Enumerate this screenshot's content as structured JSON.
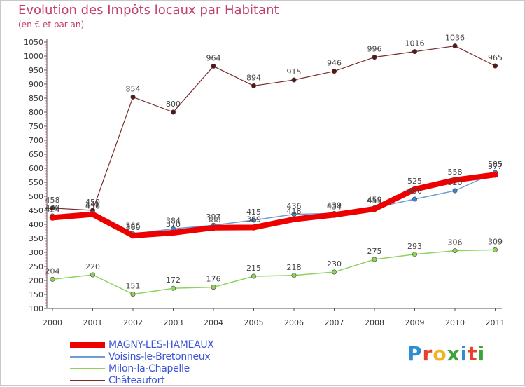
{
  "title": "Evolution des Impôts locaux par Habitant",
  "subtitle": "(en € et par an)",
  "logo": {
    "text": "Proxiti",
    "colors": [
      "#2d8fd1",
      "#e8402a",
      "#f2b321",
      "#3aa536",
      "#2d8fd1",
      "#e8402a",
      "#3aa536"
    ]
  },
  "chart_data": {
    "type": "line",
    "title": "Evolution des Impôts locaux par Habitant",
    "subtitle": "(en € et par an)",
    "xlabel": "",
    "ylabel": "",
    "x": [
      "2000",
      "2001",
      "2002",
      "2003",
      "2004",
      "2005",
      "2006",
      "2007",
      "2008",
      "2009",
      "2010",
      "2011"
    ],
    "ylim": [
      100,
      1050
    ],
    "yticks": [
      100,
      150,
      200,
      250,
      300,
      350,
      400,
      450,
      500,
      550,
      600,
      650,
      700,
      750,
      800,
      850,
      900,
      950,
      1000,
      1050
    ],
    "grid": false,
    "legend_position": "bottom-left",
    "series": [
      {
        "name": "MAGNY-LES-HAMEAUX",
        "color": "#ee0000",
        "values": [
          424,
          436,
          360,
          370,
          388,
          389,
          418,
          434,
          455,
          525,
          558,
          577
        ],
        "labels": [
          "424",
          "436",
          "360",
          "370",
          "388",
          "389",
          "418",
          "434",
          "455",
          "525",
          "558",
          "577"
        ]
      },
      {
        "name": "Voisins-le-Bretonneux",
        "color": "#6d9fd2",
        "values": [
          430,
          441,
          366,
          384,
          397,
          415,
          436,
          439,
          459,
          490,
          520,
          585
        ],
        "labels": [
          "430",
          "441",
          "366",
          "384",
          "397",
          "415",
          "436",
          "439",
          "459",
          "490",
          "520",
          "585"
        ]
      },
      {
        "name": "Milon-la-Chapelle",
        "color": "#8fd25c",
        "values": [
          204,
          220,
          151,
          172,
          176,
          215,
          218,
          230,
          275,
          293,
          306,
          309
        ],
        "labels": [
          "204",
          "220",
          "151",
          "172",
          "176",
          "215",
          "218",
          "230",
          "275",
          "293",
          "306",
          "309"
        ]
      },
      {
        "name": "Châteaufort",
        "color": "#7a2a2a",
        "values": [
          458,
          450,
          854,
          800,
          964,
          894,
          915,
          946,
          996,
          1016,
          1036,
          965
        ],
        "labels": [
          "458",
          "450",
          "854",
          "800",
          "964",
          "894",
          "915",
          "946",
          "996",
          "1016",
          "1036",
          "965"
        ]
      }
    ]
  }
}
